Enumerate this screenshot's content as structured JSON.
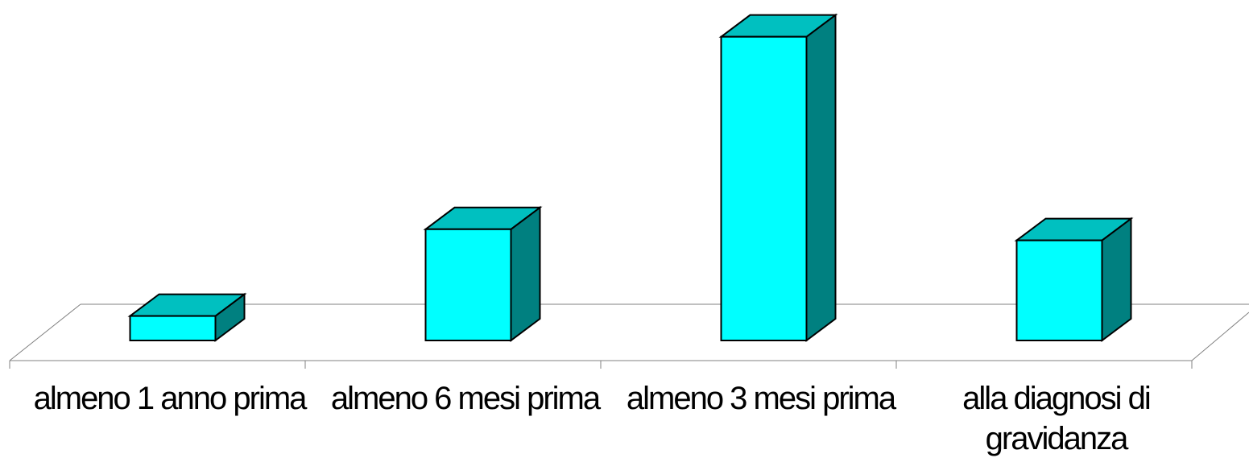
{
  "chart_data": {
    "type": "bar",
    "style": "3d-column",
    "categories": [
      "almeno 1 anno prima",
      "almeno 6 mesi prima",
      "almeno 3 mesi prima",
      "alla diagnosi di gravidanza"
    ],
    "values": [
      2.2,
      10,
      27.3,
      9
    ],
    "title": "",
    "xlabel": "",
    "ylabel": "",
    "ylim": [
      0,
      28
    ],
    "grid": false,
    "legend": "none",
    "colors": {
      "front": "#00FFFF",
      "top": "#00C0C0",
      "side": "#008080",
      "outline": "#000000",
      "floor_line": "#808080"
    }
  }
}
